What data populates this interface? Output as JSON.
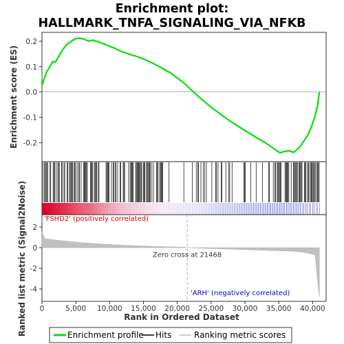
{
  "chart_data": {
    "type": "line",
    "title_line1": "Enrichment plot:",
    "title_line2": "HALLMARK_TNFA_SIGNALING_VIA_NFKB",
    "xlabel": "Rank in Ordered Dataset",
    "ylabel_top": "Enrichment score (ES)",
    "ylabel_bottom": "Ranked list metric (Signal2Noise)",
    "x_ticks": [
      0,
      5000,
      10000,
      15000,
      20000,
      25000,
      30000,
      35000,
      40000
    ],
    "x_tick_labels": [
      "0",
      "5,000",
      "10,000",
      "15,000",
      "20,000",
      "25,000",
      "30,000",
      "35,000",
      "40,000"
    ],
    "xlim": [
      0,
      42000
    ],
    "es_ylim": [
      -0.275,
      0.235
    ],
    "es_ticks": [
      -0.2,
      -0.1,
      0.0,
      0.1,
      0.2
    ],
    "es_tick_labels": [
      "-0.2",
      "-0.1",
      "0.0",
      "0.1",
      "0.2"
    ],
    "metric_ylim": [
      -5.2,
      3.2
    ],
    "metric_ticks": [
      -4,
      -2,
      0,
      2
    ],
    "metric_tick_labels": [
      "-4",
      "-2",
      "0",
      "2"
    ],
    "zero_cross_rank": 21468,
    "zero_cross_text": "Zero cross at 21468",
    "pos_label": "'FSHD2' (positively correlated)",
    "neg_label": "'ARH' (negatively correlated)",
    "max_rank": 41000,
    "series": [
      {
        "name": "Enrichment profile",
        "color": "#00e000",
        "x": [
          0,
          300,
          700,
          1200,
          1600,
          2000,
          2500,
          2900,
          3300,
          3700,
          4200,
          4600,
          5000,
          5500,
          6000,
          6500,
          7000,
          7500,
          8000,
          8600,
          9300,
          10000,
          10800,
          11500,
          12200,
          13000,
          14000,
          15000,
          16000,
          17000,
          18000,
          19000,
          20000,
          21000,
          22000,
          23000,
          24000,
          25000,
          26000,
          27000,
          28000,
          29000,
          30000,
          31000,
          32000,
          33000,
          34000,
          34600,
          35200,
          35800,
          36500,
          37200,
          37800,
          38300,
          38800,
          39300,
          39800,
          40300,
          40700,
          41000
        ],
        "y": [
          0.025,
          0.05,
          0.08,
          0.1,
          0.12,
          0.118,
          0.14,
          0.16,
          0.175,
          0.188,
          0.197,
          0.205,
          0.21,
          0.212,
          0.21,
          0.205,
          0.2,
          0.205,
          0.2,
          0.195,
          0.188,
          0.18,
          0.172,
          0.162,
          0.155,
          0.148,
          0.14,
          0.13,
          0.118,
          0.105,
          0.09,
          0.075,
          0.055,
          0.035,
          0.01,
          -0.015,
          -0.038,
          -0.06,
          -0.08,
          -0.1,
          -0.118,
          -0.135,
          -0.152,
          -0.168,
          -0.185,
          -0.2,
          -0.218,
          -0.23,
          -0.24,
          -0.235,
          -0.232,
          -0.238,
          -0.225,
          -0.21,
          -0.19,
          -0.17,
          -0.14,
          -0.1,
          -0.06,
          0.0
        ]
      },
      {
        "name": "Hits",
        "color": "#000000"
      },
      {
        "name": "Ranking metric scores",
        "color": "#c0c0c0"
      }
    ]
  }
}
